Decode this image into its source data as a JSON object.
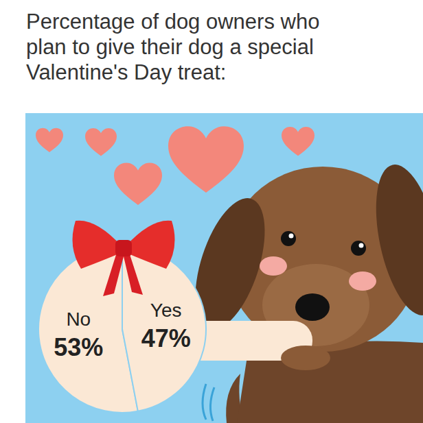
{
  "chart_data": {
    "type": "pie",
    "title": "Percentage of dog owners who\nplan to give their dog a special\nValentine's Day treat:",
    "categories": [
      "No",
      "Yes"
    ],
    "values": [
      53,
      47
    ],
    "value_labels": [
      "53%",
      "47%"
    ],
    "colors": [
      "#fbe8d5",
      "#fbe8d5"
    ],
    "data_labels": true
  }
}
